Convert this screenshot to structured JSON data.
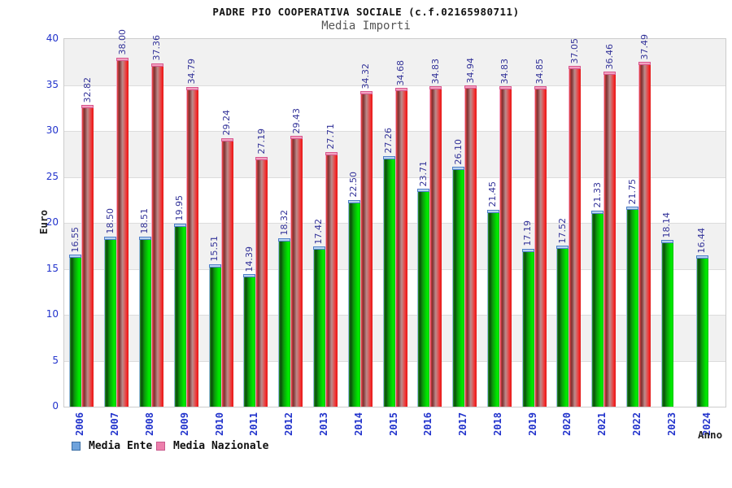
{
  "title": "PADRE PIO COOPERATIVA SOCIALE (c.f.02165980711)",
  "subtitle": "Media Importi",
  "y_axis": {
    "label": "Euro",
    "min": 0,
    "max": 40,
    "step": 5
  },
  "x_axis": {
    "label": "Anno"
  },
  "legend": [
    {
      "label": "Media Ente",
      "marker_color": "#6fa3dc",
      "marker_border": "#3a6ea5"
    },
    {
      "label": "Media Nazionale",
      "marker_color": "#ed7fac",
      "marker_border": "#c85a8c"
    }
  ],
  "colors": {
    "ente_fill": "#00cc00",
    "nazionale_fill": "#ee2222",
    "value_label": "#333399",
    "axis_tick_label": "#2233cc",
    "band_gray": "#f1f1f1",
    "gridline": "#dcdcdc",
    "plot_border": "#cccccc"
  },
  "chart_data": {
    "type": "bar",
    "title": "Media Importi",
    "xlabel": "Anno",
    "ylabel": "Euro",
    "ylim": [
      0,
      40
    ],
    "ytick_step": 5,
    "grid": "horizontal alternating bands every 5 units",
    "legend_position": "bottom-left",
    "categories": [
      "2006",
      "2007",
      "2008",
      "2009",
      "2010",
      "2011",
      "2012",
      "2013",
      "2014",
      "2015",
      "2016",
      "2017",
      "2018",
      "2019",
      "2020",
      "2021",
      "2022",
      "2023",
      "2024"
    ],
    "series": [
      {
        "name": "Media Ente",
        "values": [
          16.55,
          18.5,
          18.51,
          19.95,
          15.51,
          14.39,
          18.32,
          17.42,
          22.5,
          27.26,
          23.71,
          26.1,
          21.45,
          17.19,
          17.52,
          21.33,
          21.75,
          18.14,
          16.44
        ]
      },
      {
        "name": "Media Nazionale",
        "values": [
          32.82,
          38.0,
          37.36,
          34.79,
          29.24,
          27.19,
          29.43,
          27.71,
          34.32,
          34.68,
          34.83,
          34.94,
          34.83,
          34.85,
          37.05,
          36.46,
          37.49,
          null,
          null
        ]
      }
    ]
  }
}
